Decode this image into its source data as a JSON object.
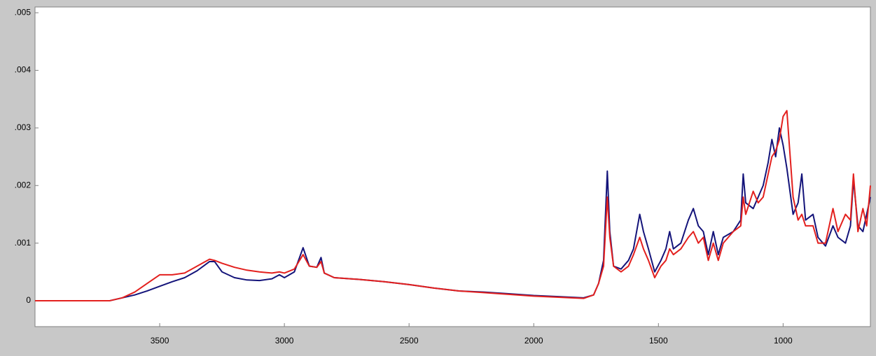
{
  "chart_data": {
    "type": "line",
    "x": [
      4000,
      3700,
      3650,
      3600,
      3550,
      3500,
      3450,
      3400,
      3350,
      3300,
      3280,
      3250,
      3200,
      3150,
      3100,
      3050,
      3020,
      3000,
      2960,
      2925,
      2900,
      2870,
      2853,
      2840,
      2800,
      2700,
      2600,
      2500,
      2400,
      2300,
      2200,
      2100,
      2000,
      1900,
      1800,
      1760,
      1740,
      1720,
      1705,
      1695,
      1680,
      1650,
      1620,
      1600,
      1575,
      1560,
      1540,
      1515,
      1490,
      1470,
      1455,
      1440,
      1410,
      1380,
      1360,
      1340,
      1320,
      1300,
      1280,
      1260,
      1240,
      1200,
      1170,
      1160,
      1150,
      1120,
      1100,
      1080,
      1060,
      1045,
      1030,
      1015,
      1000,
      985,
      960,
      940,
      925,
      910,
      880,
      860,
      830,
      800,
      780,
      750,
      730,
      718,
      700,
      680,
      665,
      650
    ],
    "series": [
      {
        "color": "#14147a",
        "values": [
          0,
          0,
          5e-05,
          0.0001,
          0.00017,
          0.00025,
          0.00033,
          0.0004,
          0.00052,
          0.00068,
          0.00068,
          0.0005,
          0.0004,
          0.00036,
          0.00035,
          0.00038,
          0.00045,
          0.0004,
          0.0005,
          0.00092,
          0.0006,
          0.00058,
          0.00075,
          0.00048,
          0.0004,
          0.00037,
          0.00033,
          0.00028,
          0.00022,
          0.00017,
          0.00015,
          0.00012,
          9e-05,
          7e-05,
          5e-05,
          0.0001,
          0.0003,
          0.0007,
          0.00225,
          0.0012,
          0.0006,
          0.00055,
          0.0007,
          0.0009,
          0.0015,
          0.0012,
          0.0009,
          0.0005,
          0.0007,
          0.0009,
          0.0012,
          0.0009,
          0.001,
          0.0014,
          0.0016,
          0.0013,
          0.0012,
          0.0008,
          0.0012,
          0.0008,
          0.0011,
          0.0012,
          0.0014,
          0.0022,
          0.0017,
          0.0016,
          0.0018,
          0.002,
          0.0024,
          0.0028,
          0.0025,
          0.003,
          0.0027,
          0.0023,
          0.0015,
          0.0017,
          0.0022,
          0.0014,
          0.0015,
          0.0011,
          0.00095,
          0.0013,
          0.0011,
          0.001,
          0.0013,
          0.0021,
          0.0013,
          0.0012,
          0.0015,
          0.0018
        ]
      },
      {
        "color": "#e3201e",
        "values": [
          0,
          0,
          5e-05,
          0.00015,
          0.0003,
          0.00045,
          0.00045,
          0.00048,
          0.0006,
          0.00072,
          0.0007,
          0.00065,
          0.00058,
          0.00053,
          0.0005,
          0.00048,
          0.0005,
          0.00048,
          0.00055,
          0.0008,
          0.0006,
          0.00058,
          0.00068,
          0.00048,
          0.0004,
          0.00037,
          0.00033,
          0.00028,
          0.00022,
          0.00017,
          0.00014,
          0.00011,
          8e-05,
          6e-05,
          4e-05,
          0.0001,
          0.0003,
          0.0006,
          0.0018,
          0.0011,
          0.0006,
          0.0005,
          0.0006,
          0.0008,
          0.0011,
          0.0009,
          0.0007,
          0.0004,
          0.0006,
          0.0007,
          0.0009,
          0.0008,
          0.0009,
          0.0011,
          0.0012,
          0.001,
          0.0011,
          0.0007,
          0.001,
          0.0007,
          0.001,
          0.0012,
          0.0013,
          0.0018,
          0.0015,
          0.0019,
          0.0017,
          0.0018,
          0.0022,
          0.0025,
          0.0026,
          0.0028,
          0.0032,
          0.0033,
          0.0018,
          0.0014,
          0.0015,
          0.0013,
          0.0013,
          0.001,
          0.001,
          0.0016,
          0.0012,
          0.0015,
          0.0014,
          0.0022,
          0.0012,
          0.0016,
          0.0013,
          0.002
        ]
      }
    ],
    "xlim": [
      4000,
      650
    ],
    "xticks": [
      3500,
      3000,
      2500,
      2000,
      1500,
      1000
    ],
    "ylim": [
      -0.00045,
      0.0051
    ],
    "yticks": [
      0,
      {
        "value": 0.001,
        "label": ".001"
      },
      {
        "value": 0.002,
        "label": ".002"
      },
      {
        "value": 0.003,
        "label": ".003"
      },
      {
        "value": 0.004,
        "label": ".004"
      },
      {
        "value": 0.005,
        "label": ".005"
      }
    ],
    "grid": false
  }
}
